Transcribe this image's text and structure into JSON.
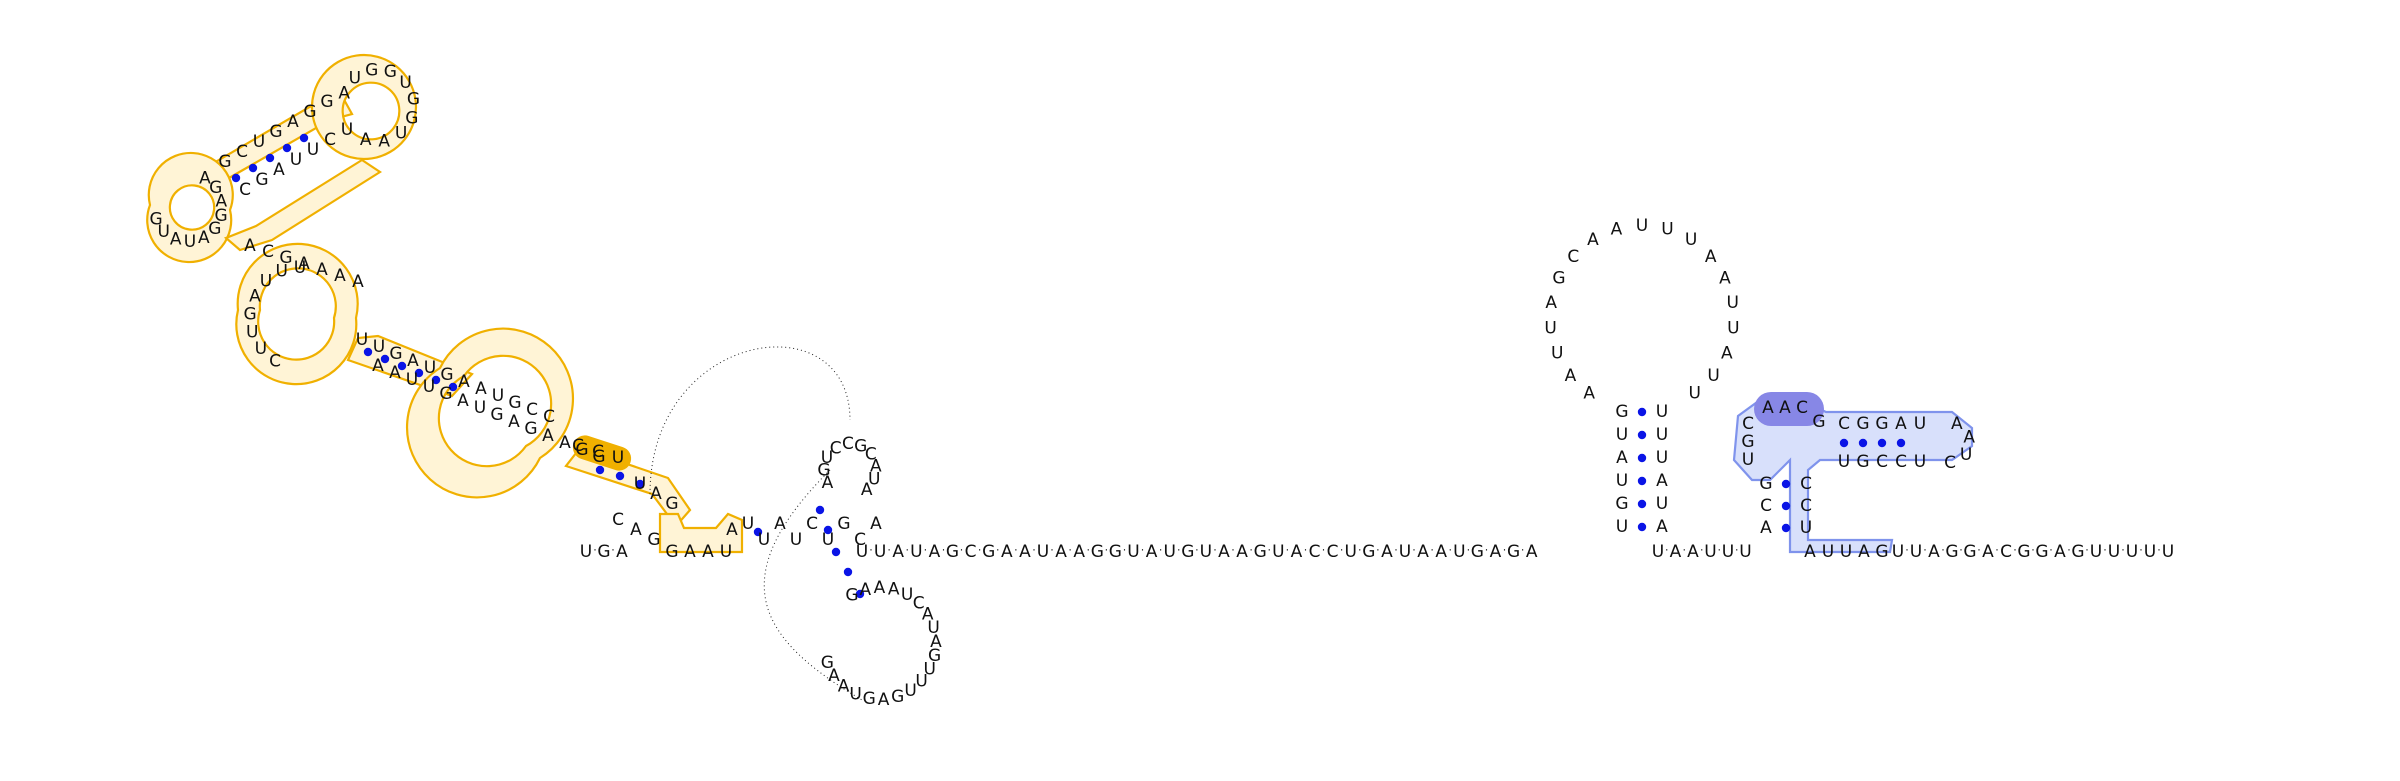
{
  "diagram": {
    "kind": "RNA secondary structure",
    "highlight_colors": {
      "region_a_fill": "#fff4d6",
      "region_a_stroke": "#f0b000",
      "region_b_fill": "#d8e0fb",
      "region_b_stroke": "#7f93ec",
      "region_b_mark": "#8787e6",
      "base_pair_dot": "#0a14e6"
    },
    "backbone": {
      "main": "U-G-A",
      "tail": "U-U-A-U-A-G-C-G-A-A-U-A-A-G-G-U-A-U-G-U-A-A-G-U-A-C-C-U-G-A-U-A-A-U-G-A-G-A",
      "linker": "U-A-A-U-U-U",
      "end": "U-U-A-G-G-A-C-G-G-A-G-U-U-U-U-U"
    },
    "hairpin_1": {
      "stem_left": [
        "G",
        "U",
        "A",
        "U",
        "G",
        "U"
      ],
      "stem_right": [
        "U",
        "U",
        "U",
        "A",
        "U",
        "A"
      ],
      "loop": [
        "A",
        "A",
        "U",
        "U",
        "A",
        "G",
        "C",
        "A",
        "A",
        "U",
        "U",
        "U",
        "A",
        "A",
        "U",
        "U",
        "A",
        "U",
        "U"
      ]
    },
    "hairpin_2": {
      "top_strand": [
        "C",
        "G",
        "G",
        "A",
        "U"
      ],
      "bottom_strand": [
        "U",
        "G",
        "C",
        "C",
        "U"
      ],
      "loop_cap": [
        "A",
        "A",
        "U",
        "C"
      ],
      "purple_mark": [
        "A",
        "A",
        "C",
        "G"
      ],
      "left_arm": [
        "C",
        "G",
        "U"
      ],
      "stem_left": [
        "G",
        "C",
        "A"
      ],
      "stem_right": [
        "C",
        "C",
        "U"
      ],
      "exit": [
        "A",
        "U",
        "U",
        "A",
        "G"
      ]
    },
    "domain_a": {
      "upper_helix_1": [
        "G",
        "C",
        "U",
        "G",
        "A",
        "G",
        "G"
      ],
      "upper_helix_2": [
        "C",
        "G",
        "A",
        "U",
        "U",
        "C",
        "U"
      ],
      "apical_loop": [
        "A",
        "U",
        "G",
        "G",
        "U",
        "G",
        "G",
        "U",
        "A",
        "A"
      ],
      "left_loop": [
        "A",
        "G",
        "A",
        "G",
        "G",
        "A",
        "U",
        "A",
        "U",
        "G"
      ],
      "mid_strand": [
        "A",
        "C",
        "G",
        "A",
        "A",
        "A",
        "A"
      ],
      "lower_helix_1": [
        "U",
        "U",
        "G",
        "A",
        "U",
        "G",
        "A",
        "A",
        "U",
        "G",
        "C",
        "C"
      ],
      "lower_helix_2": [
        "A",
        "A",
        "U",
        "U",
        "G",
        "A",
        "U",
        "G",
        "A",
        "G",
        "A",
        "A",
        "G",
        "G"
      ],
      "internal_loop": [
        "C",
        "U",
        "U",
        "G",
        "A",
        "U",
        "U",
        "U"
      ],
      "yellow_mark": [
        "C",
        "C",
        "U"
      ],
      "exit": [
        "U",
        "A",
        "G"
      ],
      "junction": [
        "C",
        "A",
        "G",
        "G",
        "A",
        "A",
        "U"
      ],
      "small_a": "A"
    },
    "pseudoknot_region": {
      "upper_loop": [
        "A",
        "G",
        "U",
        "C",
        "C",
        "G",
        "C",
        "A",
        "U",
        "A"
      ],
      "lower_loop": [
        "G",
        "A",
        "A",
        "A",
        "U",
        "C",
        "A",
        "U",
        "A",
        "G",
        "U",
        "U",
        "U",
        "G",
        "A",
        "G",
        "U",
        "A",
        "A",
        "G"
      ],
      "linker": [
        "U",
        "U",
        "A",
        "U",
        "C",
        "U",
        "G",
        "C",
        "A"
      ]
    }
  }
}
